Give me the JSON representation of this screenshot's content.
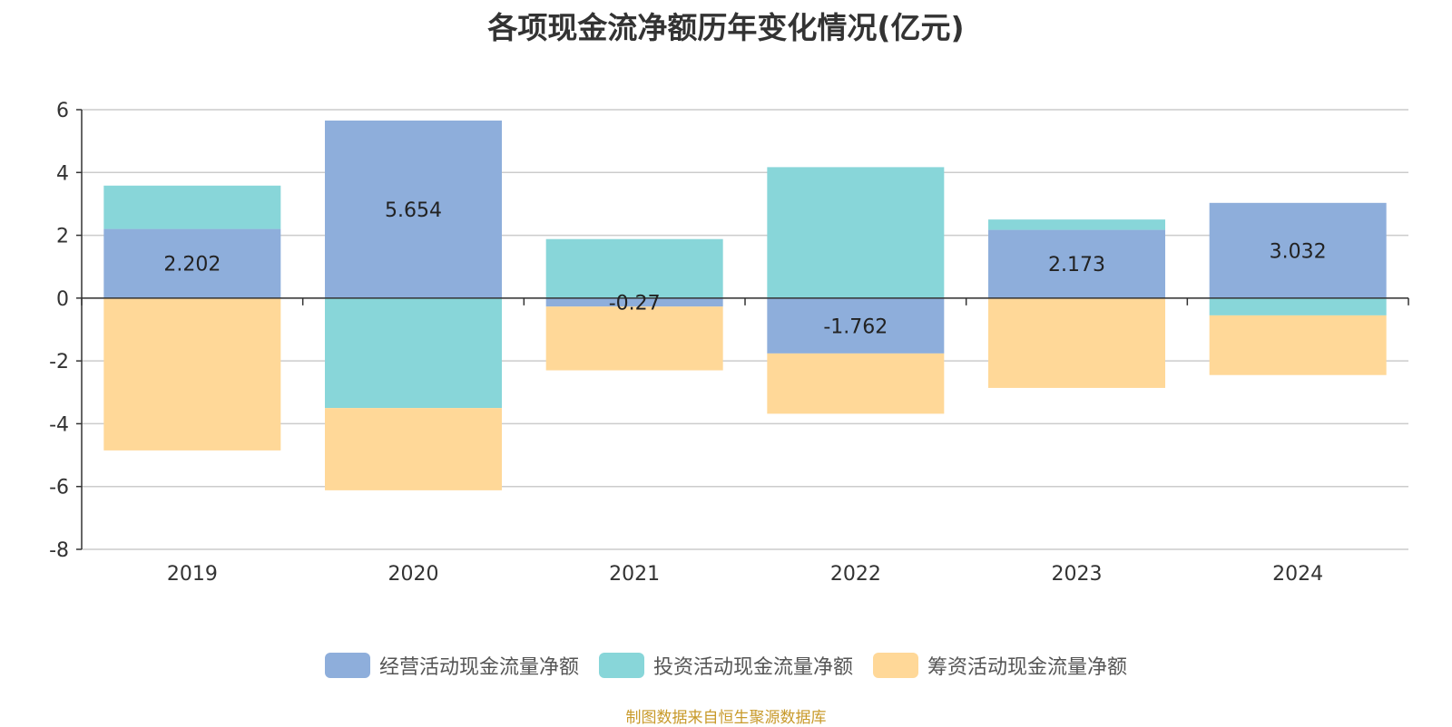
{
  "chart_data": {
    "type": "bar",
    "stacked": true,
    "title": "各项现金流净额历年变化情况(亿元)",
    "categories": [
      "2019",
      "2020",
      "2021",
      "2022",
      "2023",
      "2024"
    ],
    "ylim": [
      -8,
      6
    ],
    "yticks": [
      6,
      4,
      2,
      0,
      -2,
      -4,
      -6,
      -8
    ],
    "grid": true,
    "legend_position": "bottom",
    "series": [
      {
        "name": "经营活动现金流量净额",
        "color": "#8eaedb",
        "values": [
          2.202,
          5.654,
          -0.27,
          -1.762,
          2.173,
          3.032
        ]
      },
      {
        "name": "投资活动现金流量净额",
        "color": "#88d6d9",
        "values": [
          1.38,
          -3.5,
          1.88,
          4.17,
          0.33,
          -0.55
        ]
      },
      {
        "name": "筹资活动现金流量净额",
        "color": "#ffd898",
        "values": [
          -4.85,
          -2.62,
          -2.03,
          -1.92,
          -2.86,
          -1.9
        ]
      }
    ],
    "data_labels": [
      "2.202",
      "5.654",
      "-0.27",
      "-1.762",
      "2.173",
      "3.032"
    ],
    "source": "制图数据来自恒生聚源数据库"
  }
}
